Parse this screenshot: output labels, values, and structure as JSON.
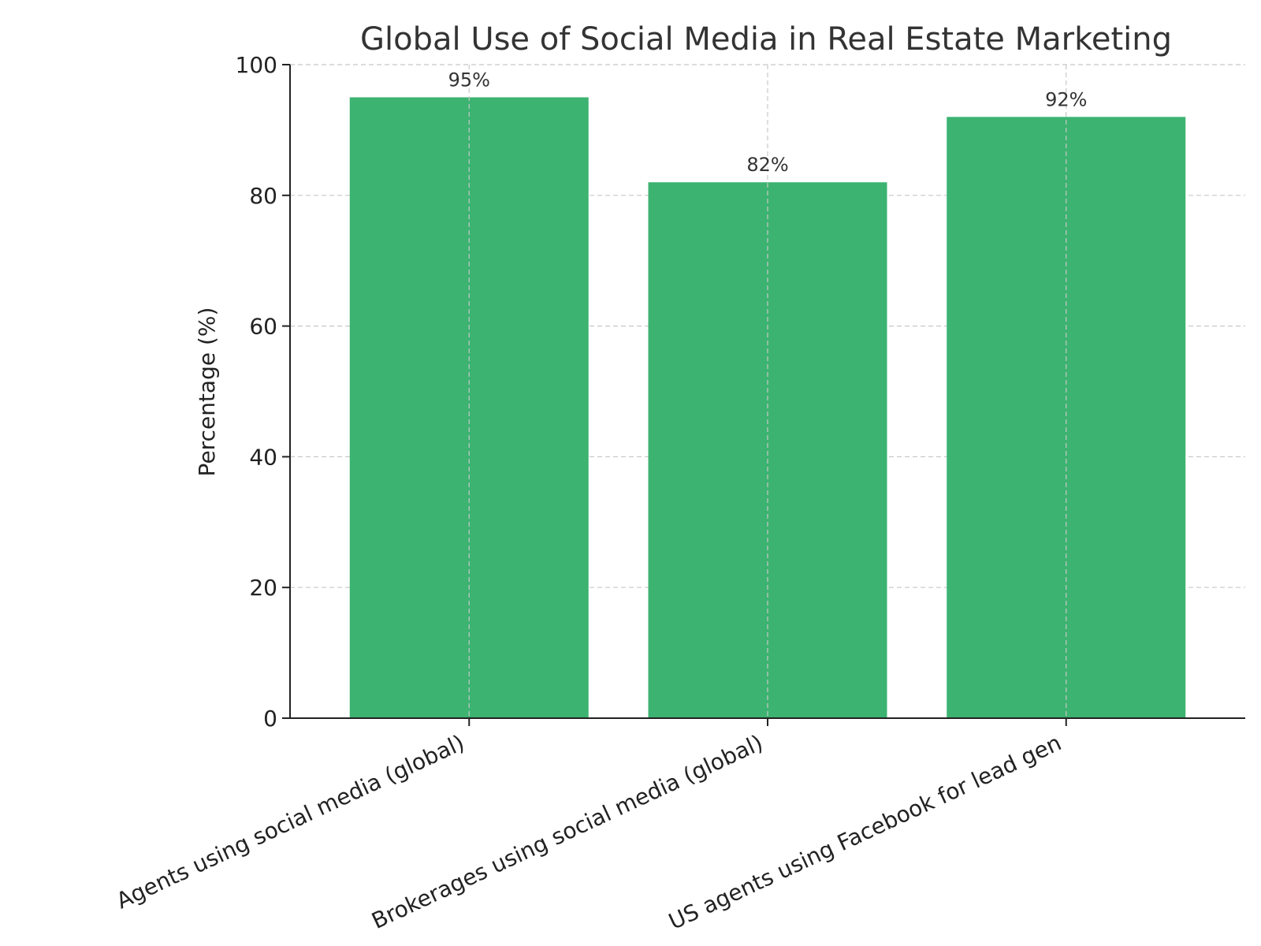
{
  "chart_data": {
    "type": "bar",
    "title": "Global Use of Social Media in Real Estate Marketing",
    "xlabel": "",
    "ylabel": "Percentage (%)",
    "categories": [
      "Agents using social media (global)",
      "Brokerages using social media (global)",
      "US agents using Facebook for lead gen"
    ],
    "values": [
      95,
      82,
      92
    ],
    "data_labels": [
      "95%",
      "82%",
      "92%"
    ],
    "ylim": [
      0,
      100
    ],
    "yticks": [
      0,
      20,
      40,
      60,
      80,
      100
    ],
    "grid": true,
    "legend": "none",
    "colors": {
      "bar": "#3cb371",
      "grid": "#c8c8c8",
      "axis": "#222222",
      "title": "#333333"
    }
  }
}
